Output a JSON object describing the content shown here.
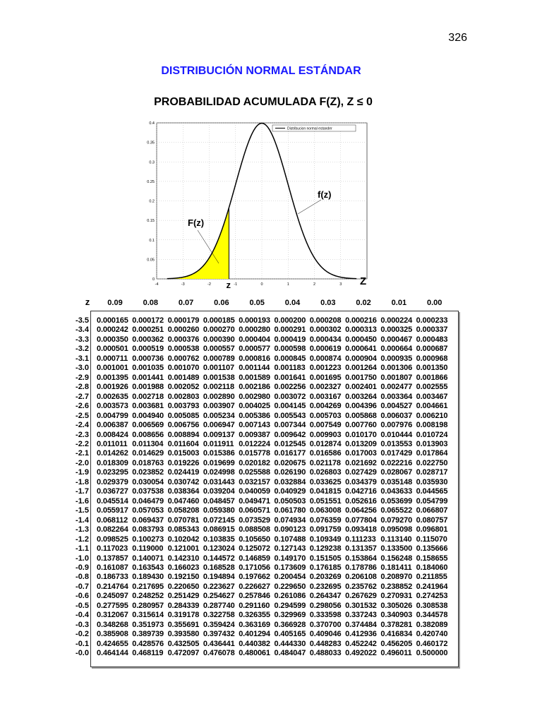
{
  "page_number": "326",
  "title": "DISTRIBUCIÓN NORMAL ESTÁNDAR",
  "subtitle": "PROBABILIDAD ACUMULADA  F(Z), Z ≤ 0",
  "chart_data": {
    "type": "line",
    "legend": "Distribucion normal estander",
    "legend_placement": "top-right",
    "xlim": [
      -4,
      4
    ],
    "ylim": [
      0,
      0.4
    ],
    "x_ticks": [
      "-4",
      "-3",
      "-2",
      "-1",
      "0",
      "1",
      "2",
      "3"
    ],
    "y_ticks": [
      "0",
      "0.05",
      "0.1",
      "0.15",
      "0.2",
      "0.25",
      "0.3",
      "0.35",
      "0.4"
    ],
    "grid": true,
    "series": [
      {
        "x": [
          -3.5,
          -3,
          -2.5,
          -2,
          -1.5,
          -1,
          -0.5,
          0,
          0.5,
          1,
          1.5,
          2,
          2.5,
          3,
          3.5
        ],
        "y": [
          0.0009,
          0.0044,
          0.0175,
          0.054,
          0.1295,
          0.242,
          0.3521,
          0.3989,
          0.3521,
          0.242,
          0.1295,
          0.054,
          0.0175,
          0.0044,
          0.0009
        ]
      }
    ],
    "shaded_area": {
      "from": -3.6,
      "to": -1.25,
      "color": "#ffff00"
    },
    "annotations": {
      "area_label": "F(z)",
      "curve_label": "f(z)",
      "axis_z": "Z",
      "point_z": "z"
    },
    "curve_color": "#000000"
  },
  "table": {
    "z_header": "z",
    "columns": [
      "0.09",
      "0.08",
      "0.07",
      "0.06",
      "0.05",
      "0.04",
      "0.03",
      "0.02",
      "0.01",
      "0.00"
    ],
    "rows": [
      {
        "z": "-3.5",
        "v": [
          "0.000165",
          "0.000172",
          "0.000179",
          "0.000185",
          "0.000193",
          "0.000200",
          "0.000208",
          "0.000216",
          "0.000224",
          "0.000233"
        ]
      },
      {
        "z": "-3.4",
        "v": [
          "0.000242",
          "0.000251",
          "0.000260",
          "0.000270",
          "0.000280",
          "0.000291",
          "0.000302",
          "0.000313",
          "0.000325",
          "0.000337"
        ]
      },
      {
        "z": "-3.3",
        "v": [
          "0.000350",
          "0.000362",
          "0.000376",
          "0.000390",
          "0.000404",
          "0.000419",
          "0.000434",
          "0.000450",
          "0.000467",
          "0.000483"
        ]
      },
      {
        "z": "-3.2",
        "v": [
          "0.000501",
          "0.000519",
          "0.000538",
          "0.000557",
          "0.000577",
          "0.000598",
          "0.000619",
          "0.000641",
          "0.000664",
          "0.000687"
        ]
      },
      {
        "z": "-3.1",
        "v": [
          "0.000711",
          "0.000736",
          "0.000762",
          "0.000789",
          "0.000816",
          "0.000845",
          "0.000874",
          "0.000904",
          "0.000935",
          "0.000968"
        ]
      },
      {
        "z": "-3.0",
        "v": [
          "0.001001",
          "0.001035",
          "0.001070",
          "0.001107",
          "0.001144",
          "0.001183",
          "0.001223",
          "0.001264",
          "0.001306",
          "0.001350"
        ]
      },
      {
        "z": "-2.9",
        "v": [
          "0.001395",
          "0.001441",
          "0.001489",
          "0.001538",
          "0.001589",
          "0.001641",
          "0.001695",
          "0.001750",
          "0.001807",
          "0.001866"
        ]
      },
      {
        "z": "-2.8",
        "v": [
          "0.001926",
          "0.001988",
          "0.002052",
          "0.002118",
          "0.002186",
          "0.002256",
          "0.002327",
          "0.002401",
          "0.002477",
          "0.002555"
        ]
      },
      {
        "z": "-2.7",
        "v": [
          "0.002635",
          "0.002718",
          "0.002803",
          "0.002890",
          "0.002980",
          "0.003072",
          "0.003167",
          "0.003264",
          "0.003364",
          "0.003467"
        ]
      },
      {
        "z": "-2.6",
        "v": [
          "0.003573",
          "0.003681",
          "0.003793",
          "0.003907",
          "0.004025",
          "0.004145",
          "0.004269",
          "0.004396",
          "0.004527",
          "0.004661"
        ]
      },
      {
        "z": "-2.5",
        "v": [
          "0.004799",
          "0.004940",
          "0.005085",
          "0.005234",
          "0.005386",
          "0.005543",
          "0.005703",
          "0.005868",
          "0.006037",
          "0.006210"
        ]
      },
      {
        "z": "-2.4",
        "v": [
          "0.006387",
          "0.006569",
          "0.006756",
          "0.006947",
          "0.007143",
          "0.007344",
          "0.007549",
          "0.007760",
          "0.007976",
          "0.008198"
        ]
      },
      {
        "z": "-2.3",
        "v": [
          "0.008424",
          "0.008656",
          "0.008894",
          "0.009137",
          "0.009387",
          "0.009642",
          "0.009903",
          "0.010170",
          "0.010444",
          "0.010724"
        ]
      },
      {
        "z": "-2.2",
        "v": [
          "0.011011",
          "0.011304",
          "0.011604",
          "0.011911",
          "0.012224",
          "0.012545",
          "0.012874",
          "0.013209",
          "0.013553",
          "0.013903"
        ]
      },
      {
        "z": "-2.1",
        "v": [
          "0.014262",
          "0.014629",
          "0.015003",
          "0.015386",
          "0.015778",
          "0.016177",
          "0.016586",
          "0.017003",
          "0.017429",
          "0.017864"
        ]
      },
      {
        "z": "-2.0",
        "v": [
          "0.018309",
          "0.018763",
          "0.019226",
          "0.019699",
          "0.020182",
          "0.020675",
          "0.021178",
          "0.021692",
          "0.022216",
          "0.022750"
        ]
      },
      {
        "z": "-1.9",
        "v": [
          "0.023295",
          "0.023852",
          "0.024419",
          "0.024998",
          "0.025588",
          "0.026190",
          "0.026803",
          "0.027429",
          "0.028067",
          "0.028717"
        ]
      },
      {
        "z": "-1.8",
        "v": [
          "0.029379",
          "0.030054",
          "0.030742",
          "0.031443",
          "0.032157",
          "0.032884",
          "0.033625",
          "0.034379",
          "0.035148",
          "0.035930"
        ]
      },
      {
        "z": "-1.7",
        "v": [
          "0.036727",
          "0.037538",
          "0.038364",
          "0.039204",
          "0.040059",
          "0.040929",
          "0.041815",
          "0.042716",
          "0.043633",
          "0.044565"
        ]
      },
      {
        "z": "-1.6",
        "v": [
          "0.045514",
          "0.046479",
          "0.047460",
          "0.048457",
          "0.049471",
          "0.050503",
          "0.051551",
          "0.052616",
          "0.053699",
          "0.054799"
        ]
      },
      {
        "z": "-1.5",
        "v": [
          "0.055917",
          "0.057053",
          "0.058208",
          "0.059380",
          "0.060571",
          "0.061780",
          "0.063008",
          "0.064256",
          "0.065522",
          "0.066807"
        ]
      },
      {
        "z": "-1.4",
        "v": [
          "0.068112",
          "0.069437",
          "0.070781",
          "0.072145",
          "0.073529",
          "0.074934",
          "0.076359",
          "0.077804",
          "0.079270",
          "0.080757"
        ]
      },
      {
        "z": "-1.3",
        "v": [
          "0.082264",
          "0.083793",
          "0.085343",
          "0.086915",
          "0.088508",
          "0.090123",
          "0.091759",
          "0.093418",
          "0.095098",
          "0.096801"
        ]
      },
      {
        "z": "-1.2",
        "v": [
          "0.098525",
          "0.100273",
          "0.102042",
          "0.103835",
          "0.105650",
          "0.107488",
          "0.109349",
          "0.111233",
          "0.113140",
          "0.115070"
        ]
      },
      {
        "z": "-1.1",
        "v": [
          "0.117023",
          "0.119000",
          "0.121001",
          "0.123024",
          "0.125072",
          "0.127143",
          "0.129238",
          "0.131357",
          "0.133500",
          "0.135666"
        ]
      },
      {
        "z": "-1.0",
        "v": [
          "0.137857",
          "0.140071",
          "0.142310",
          "0.144572",
          "0.146859",
          "0.149170",
          "0.151505",
          "0.153864",
          "0.156248",
          "0.158655"
        ]
      },
      {
        "z": "-0.9",
        "v": [
          "0.161087",
          "0.163543",
          "0.166023",
          "0.168528",
          "0.171056",
          "0.173609",
          "0.176185",
          "0.178786",
          "0.181411",
          "0.184060"
        ]
      },
      {
        "z": "-0.8",
        "v": [
          "0.186733",
          "0.189430",
          "0.192150",
          "0.194894",
          "0.197662",
          "0.200454",
          "0.203269",
          "0.206108",
          "0.208970",
          "0.211855"
        ]
      },
      {
        "z": "-0.7",
        "v": [
          "0.214764",
          "0.217695",
          "0.220650",
          "0.223627",
          "0.226627",
          "0.229650",
          "0.232695",
          "0.235762",
          "0.238852",
          "0.241964"
        ]
      },
      {
        "z": "-0.6",
        "v": [
          "0.245097",
          "0.248252",
          "0.251429",
          "0.254627",
          "0.257846",
          "0.261086",
          "0.264347",
          "0.267629",
          "0.270931",
          "0.274253"
        ]
      },
      {
        "z": "-0.5",
        "v": [
          "0.277595",
          "0.280957",
          "0.284339",
          "0.287740",
          "0.291160",
          "0.294599",
          "0.298056",
          "0.301532",
          "0.305026",
          "0.308538"
        ]
      },
      {
        "z": "-0.4",
        "v": [
          "0.312067",
          "0.315614",
          "0.319178",
          "0.322758",
          "0.326355",
          "0.329969",
          "0.333598",
          "0.337243",
          "0.340903",
          "0.344578"
        ]
      },
      {
        "z": "-0.3",
        "v": [
          "0.348268",
          "0.351973",
          "0.355691",
          "0.359424",
          "0.363169",
          "0.366928",
          "0.370700",
          "0.374484",
          "0.378281",
          "0.382089"
        ]
      },
      {
        "z": "-0.2",
        "v": [
          "0.385908",
          "0.389739",
          "0.393580",
          "0.397432",
          "0.401294",
          "0.405165",
          "0.409046",
          "0.412936",
          "0.416834",
          "0.420740"
        ]
      },
      {
        "z": "-0.1",
        "v": [
          "0.424655",
          "0.428576",
          "0.432505",
          "0.436441",
          "0.440382",
          "0.444330",
          "0.448283",
          "0.452242",
          "0.456205",
          "0.460172"
        ]
      },
      {
        "z": "-0.0",
        "v": [
          "0.464144",
          "0.468119",
          "0.472097",
          "0.476078",
          "0.480061",
          "0.484047",
          "0.488033",
          "0.492022",
          "0.496011",
          "0.500000"
        ]
      }
    ]
  }
}
